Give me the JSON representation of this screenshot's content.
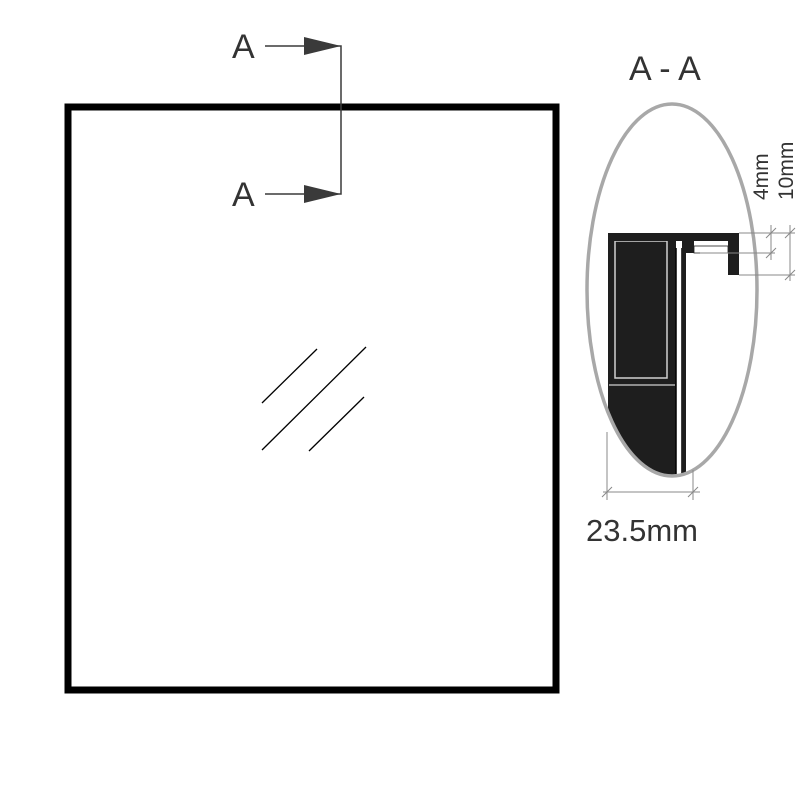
{
  "section_marker_top": "A",
  "section_marker_bottom": "A",
  "section_title": "A - A",
  "dim_lip": "4mm",
  "dim_return": "10mm",
  "dim_depth": "23.5mm",
  "colors": {
    "frame": "#000000",
    "profile": "#1e1e1e",
    "detail_ellipse": "#a8a8a8",
    "dimension_line": "#888888",
    "arrow": "#3a3a3a"
  }
}
